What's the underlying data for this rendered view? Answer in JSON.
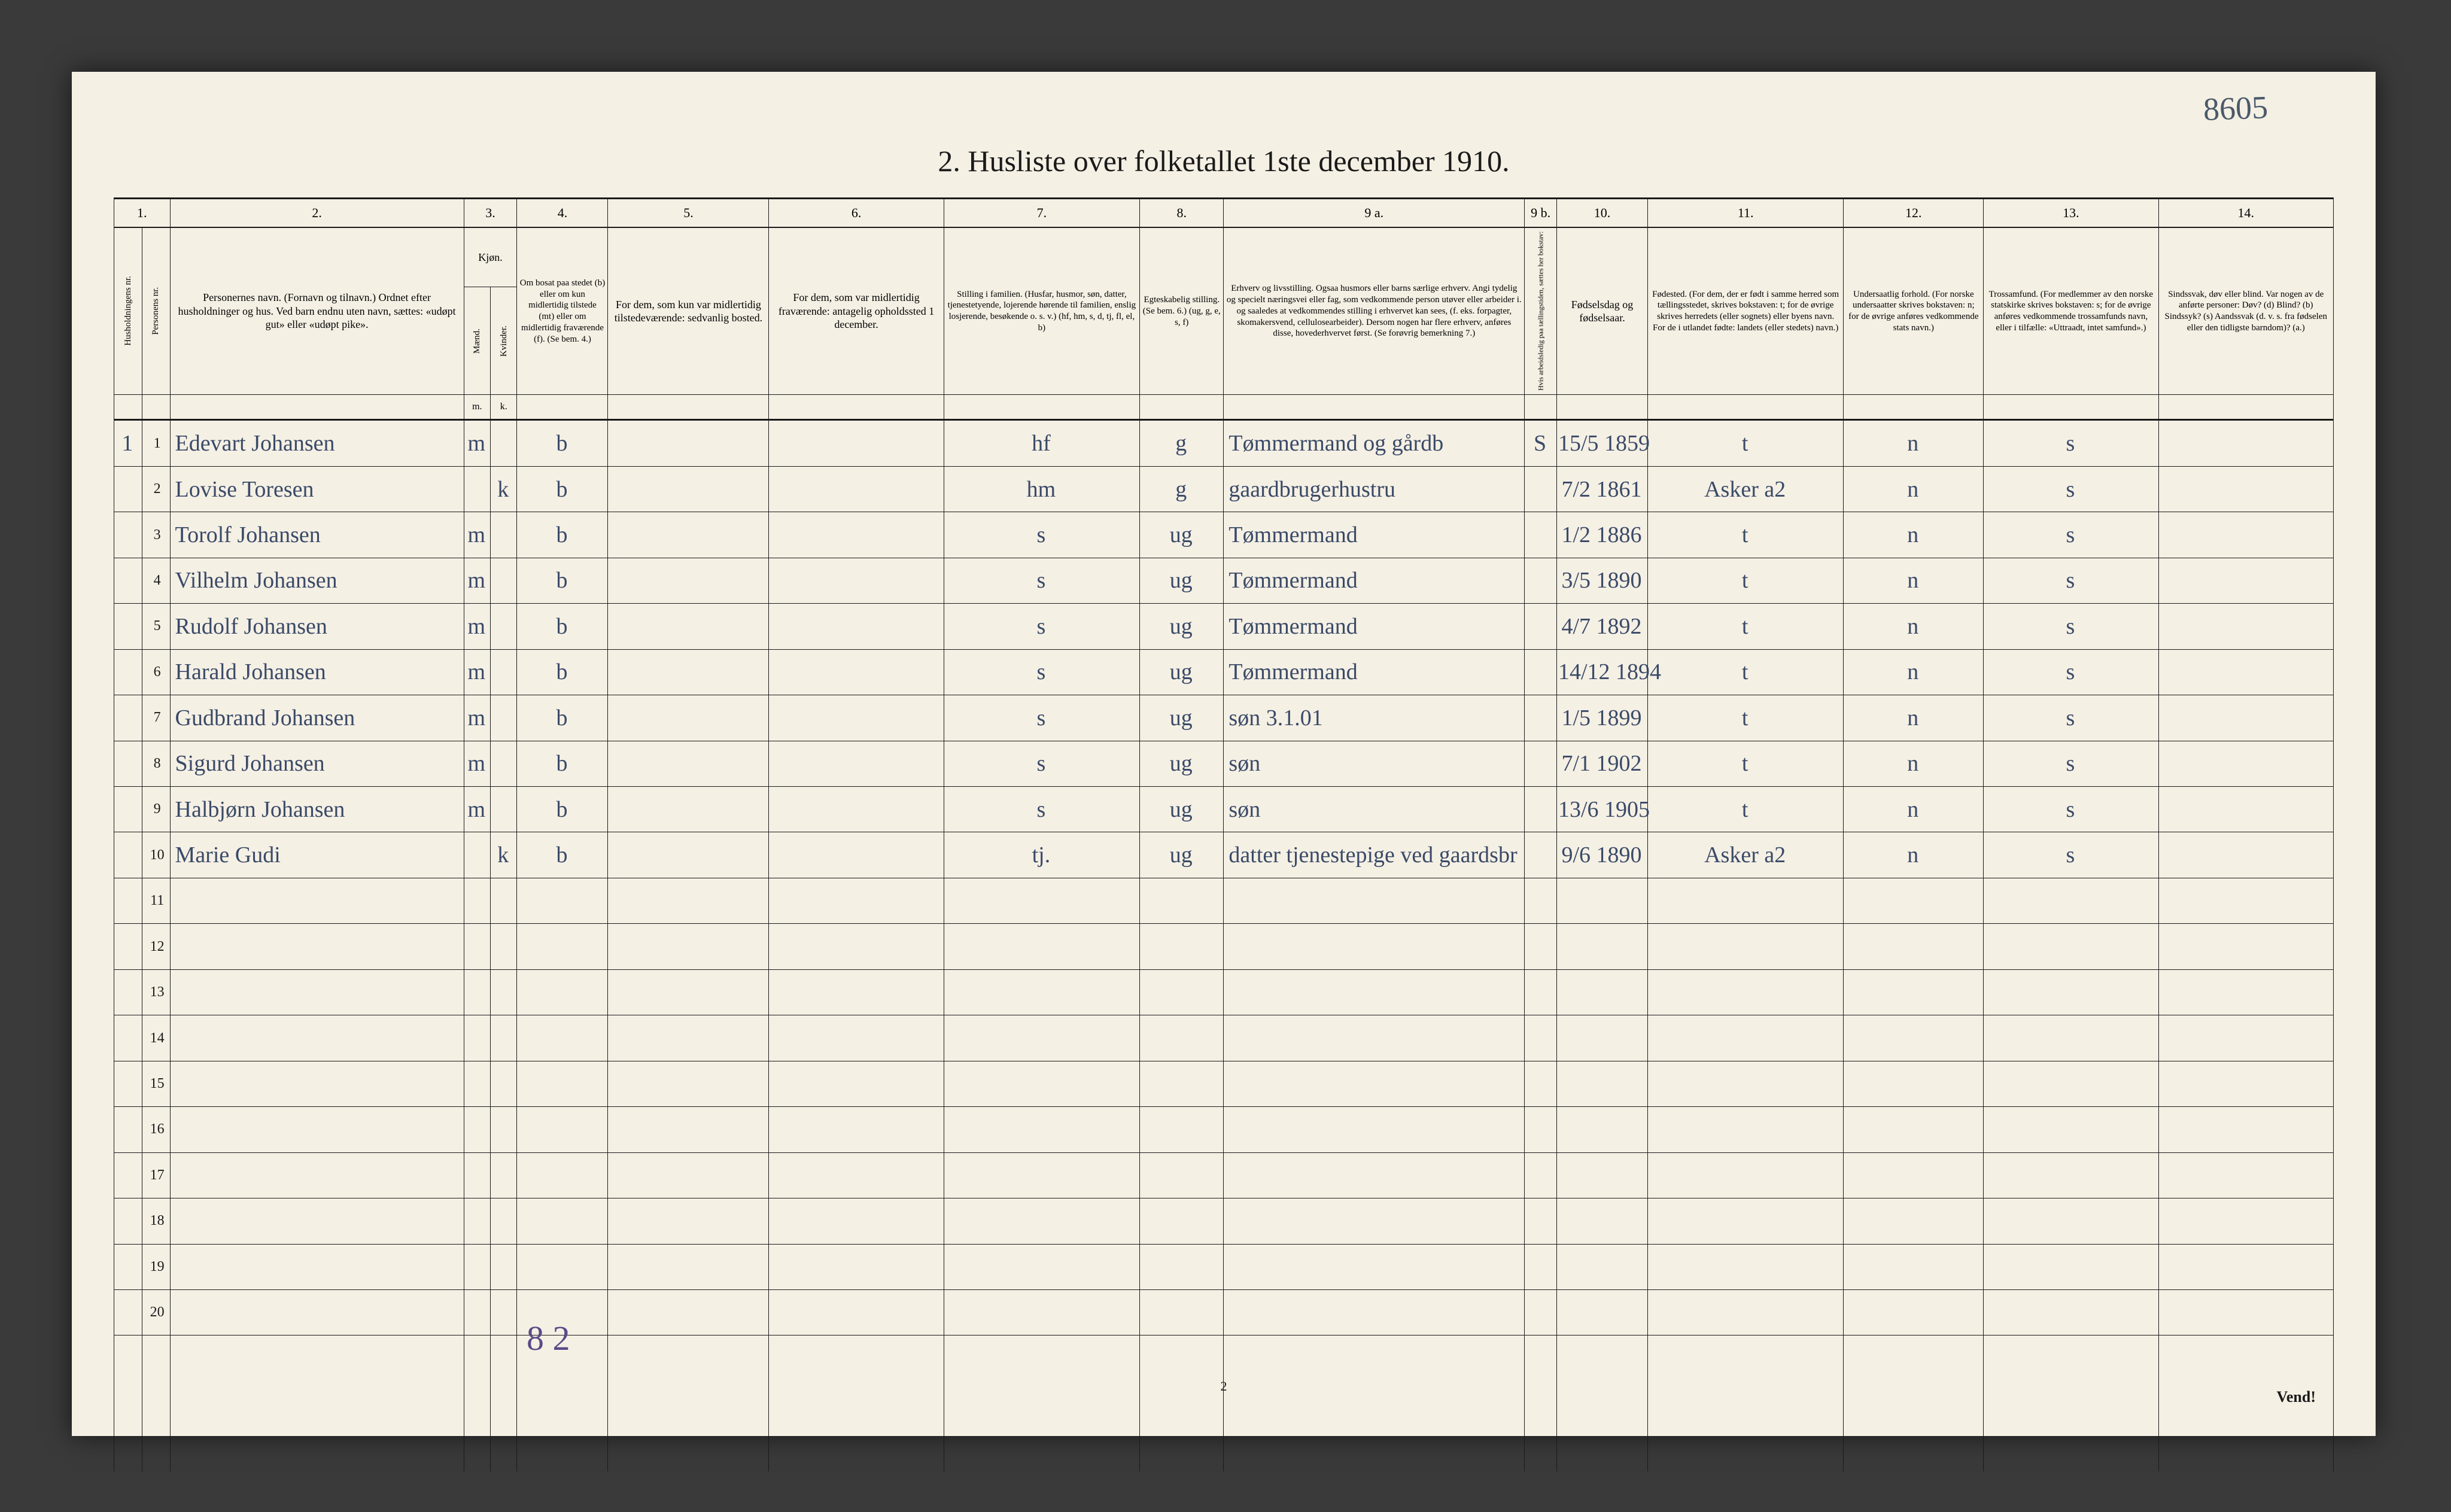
{
  "handwritten_top_right": "8605",
  "title": "2.  Husliste over folketallet 1ste december 1910.",
  "header_numbers": [
    "1.",
    "2.",
    "3.",
    "4.",
    "5.",
    "6.",
    "7.",
    "8.",
    "9 a.",
    "9 b.",
    "10.",
    "11.",
    "12.",
    "13.",
    "14."
  ],
  "headers": {
    "c1a": "Husholdningens nr.",
    "c1b": "Personens nr.",
    "c2": "Personernes navn.\n(Fornavn og tilnavn.)\nOrdnet efter husholdninger og hus.\nVed barn endnu uten navn, sættes: «udøpt gut»\neller «udøpt pike».",
    "c3": "Kjøn.",
    "c3m": "Mænd.",
    "c3k": "Kvinder.",
    "c4": "Om bosat paa stedet (b) eller om kun midlertidig tilstede (mt) eller om midlertidig fraværende (f).\n(Se bem. 4.)",
    "c5": "For dem, som kun var midlertidig tilstedeværende:\nsedvanlig bosted.",
    "c6": "For dem, som var midlertidig fraværende:\nantagelig opholdssted 1 december.",
    "c7": "Stilling i familien.\n(Husfar, husmor, søn, datter, tjenestetyende, lojerende hørende til familien, enslig losjerende, besøkende o. s. v.)\n(hf, hm, s, d, tj, fl, el, b)",
    "c8": "Egteskabelig stilling.\n(Se bem. 6.)\n(ug, g, e, s, f)",
    "c9a": "Erhverv og livsstilling.\nOgsaa husmors eller barns særlige erhverv.\nAngi tydelig og specielt næringsvei eller fag, som vedkommende person utøver eller arbeider i. og saaledes at vedkommendes stilling i erhvervet kan sees, (f. eks. forpagter, skomakersvend, cellulosearbeider). Dersom nogen har flere erhverv, anføres disse, hovederhvervet først.\n(Se forøvrig bemerkning 7.)",
    "c9b": "Hvis arbeidsledig paa tællingstiden, sættes her bokstav:",
    "c10": "Fødselsdag og fødselsaar.",
    "c11": "Fødested.\n(For dem, der er født i samme herred som tællingsstedet, skrives bokstaven: t; for de øvrige skrives herredets (eller sognets) eller byens navn. For de i utlandet fødte: landets (eller stedets) navn.)",
    "c12": "Undersaatlig forhold.\n(For norske undersaatter skrives bokstaven: n; for de øvrige anføres vedkommende stats navn.)",
    "c13": "Trossamfund.\n(For medlemmer av den norske statskirke skrives bokstaven: s; for de øvrige anføres vedkommende trossamfunds navn, eller i tilfælle: «Uttraadt, intet samfund».)",
    "c14": "Sindssvak, døv eller blind.\nVar nogen av de anførte personer:\nDøv? (d)\nBlind? (b)\nSindssyk? (s)\nAandssvak (d. v. s. fra fødselen eller den tidligste barndom)? (a.)",
    "sub_m": "m.",
    "sub_k": "k."
  },
  "rows": [
    {
      "hh": "1",
      "pn": "1",
      "name": "Edevart Johansen",
      "m": "m",
      "k": "",
      "b": "b",
      "c5": "",
      "c6": "",
      "c7": "hf",
      "c8": "g",
      "c9a": "Tømmermand og gårdb",
      "c9b": "S",
      "c10": "15/5 1859",
      "c11": "t",
      "c12": "n",
      "c13": "s",
      "c14": ""
    },
    {
      "hh": "",
      "pn": "2",
      "name": "Lovise Toresen",
      "m": "",
      "k": "k",
      "b": "b",
      "c5": "",
      "c6": "",
      "c7": "hm",
      "c8": "g",
      "c9a": "gaardbrugerhustru",
      "c9b": "",
      "c10": "7/2 1861",
      "c11": "Asker  a2",
      "c12": "n",
      "c13": "s",
      "c14": ""
    },
    {
      "hh": "",
      "pn": "3",
      "name": "Torolf Johansen",
      "m": "m",
      "k": "",
      "b": "b",
      "c5": "",
      "c6": "",
      "c7": "s",
      "c8": "ug",
      "c9a": "Tømmermand",
      "c9b": "",
      "c10": "1/2 1886",
      "c11": "t",
      "c12": "n",
      "c13": "s",
      "c14": ""
    },
    {
      "hh": "",
      "pn": "4",
      "name": "Vilhelm Johansen",
      "m": "m",
      "k": "",
      "b": "b",
      "c5": "",
      "c6": "",
      "c7": "s",
      "c8": "ug",
      "c9a": "Tømmermand",
      "c9b": "",
      "c10": "3/5 1890",
      "c11": "t",
      "c12": "n",
      "c13": "s",
      "c14": ""
    },
    {
      "hh": "",
      "pn": "5",
      "name": "Rudolf Johansen",
      "m": "m",
      "k": "",
      "b": "b",
      "c5": "",
      "c6": "",
      "c7": "s",
      "c8": "ug",
      "c9a": "Tømmermand",
      "c9b": "",
      "c10": "4/7 1892",
      "c11": "t",
      "c12": "n",
      "c13": "s",
      "c14": ""
    },
    {
      "hh": "",
      "pn": "6",
      "name": "Harald Johansen",
      "m": "m",
      "k": "",
      "b": "b",
      "c5": "",
      "c6": "",
      "c7": "s",
      "c8": "ug",
      "c9a": "Tømmermand",
      "c9b": "",
      "c10": "14/12 1894",
      "c11": "t",
      "c12": "n",
      "c13": "s",
      "c14": ""
    },
    {
      "hh": "",
      "pn": "7",
      "name": "Gudbrand Johansen",
      "m": "m",
      "k": "",
      "b": "b",
      "c5": "",
      "c6": "",
      "c7": "s",
      "c8": "ug",
      "c9a": "søn 3.1.01",
      "c9b": "",
      "c10": "1/5 1899",
      "c11": "t",
      "c12": "n",
      "c13": "s",
      "c14": ""
    },
    {
      "hh": "",
      "pn": "8",
      "name": "Sigurd Johansen",
      "m": "m",
      "k": "",
      "b": "b",
      "c5": "",
      "c6": "",
      "c7": "s",
      "c8": "ug",
      "c9a": "søn",
      "c9b": "",
      "c10": "7/1 1902",
      "c11": "t",
      "c12": "n",
      "c13": "s",
      "c14": ""
    },
    {
      "hh": "",
      "pn": "9",
      "name": "Halbjørn Johansen",
      "m": "m",
      "k": "",
      "b": "b",
      "c5": "",
      "c6": "",
      "c7": "s",
      "c8": "ug",
      "c9a": "søn",
      "c9b": "",
      "c10": "13/6 1905",
      "c11": "t",
      "c12": "n",
      "c13": "s",
      "c14": ""
    },
    {
      "hh": "",
      "pn": "10",
      "name": "Marie Gudi",
      "m": "",
      "k": "k",
      "b": "b",
      "c5": "",
      "c6": "",
      "c7": "tj.",
      "c8": "ug",
      "c9a": "datter tjenestepige ved gaardsbr",
      "c9b": "",
      "c10": "9/6 1890",
      "c11": "Asker  a2",
      "c12": "n",
      "c13": "s",
      "c14": ""
    }
  ],
  "printed_row_numbers_empty": [
    "11",
    "12",
    "13",
    "14",
    "15",
    "16",
    "17",
    "18",
    "19",
    "20"
  ],
  "bottom_handwritten": "8 2",
  "footer_page": "2",
  "footer_vend": "Vend!"
}
